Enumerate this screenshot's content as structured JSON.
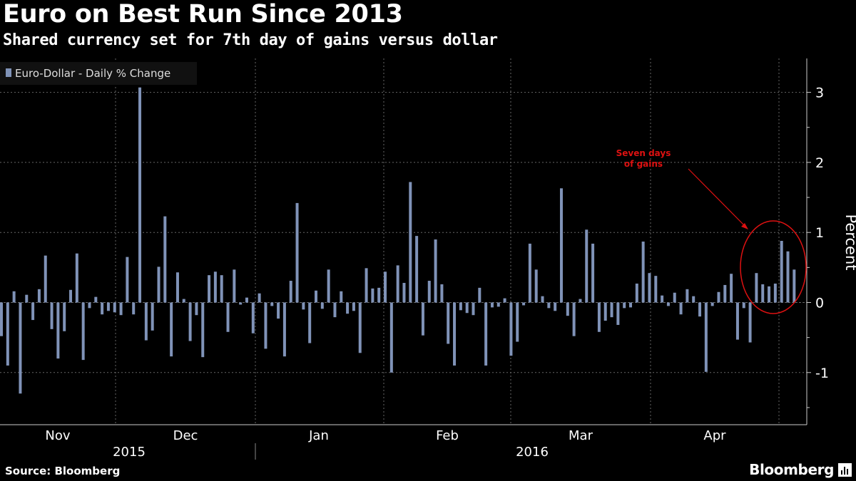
{
  "header": {
    "title": "Euro on Best Run Since 2013",
    "subtitle": "Shared currency set for 7th day of gains versus dollar"
  },
  "footer": {
    "source": "Source: Bloomberg",
    "brand": "Bloomberg"
  },
  "colors": {
    "background": "#000000",
    "bar": "#8093b8",
    "annotation": "#dd1111",
    "grid": "#666666",
    "text": "#ffffff"
  },
  "chart_data": {
    "type": "bar",
    "legend": {
      "position": "top-left",
      "items": [
        {
          "label": "Euro-Dollar - Daily % Change",
          "color": "#8093b8"
        }
      ]
    },
    "ylabel": "Percent",
    "yaxis_side": "right",
    "ylim": [
      -1.75,
      3.45
    ],
    "yticks": [
      -1,
      0,
      1,
      2,
      3
    ],
    "grid": true,
    "month_labels": [
      "Nov",
      "Dec",
      "Jan",
      "Feb",
      "Mar",
      "Apr"
    ],
    "year_labels": [
      "2015",
      "2016"
    ],
    "annotation": {
      "text_line1": "Seven days",
      "text_line2": "of gains"
    },
    "series": [
      {
        "name": "Euro-Dollar - Daily % Change",
        "values": [
          -0.48,
          -0.9,
          0.16,
          -1.3,
          0.11,
          -0.25,
          0.19,
          0.67,
          -0.38,
          -0.8,
          -0.41,
          0.18,
          0.7,
          -0.82,
          -0.08,
          0.08,
          -0.17,
          -0.12,
          -0.14,
          -0.18,
          0.65,
          -0.17,
          3.07,
          -0.54,
          -0.4,
          0.51,
          1.23,
          -0.77,
          0.43,
          0.05,
          -0.55,
          -0.18,
          -0.78,
          0.39,
          0.44,
          0.39,
          -0.42,
          0.47,
          -0.03,
          0.07,
          -0.44,
          0.13,
          -0.66,
          -0.05,
          -0.23,
          -0.77,
          0.31,
          1.42,
          -0.1,
          -0.58,
          0.17,
          -0.09,
          0.47,
          -0.21,
          0.16,
          -0.16,
          -0.12,
          -0.72,
          0.49,
          0.2,
          0.21,
          0.44,
          -1.0,
          0.53,
          0.28,
          1.72,
          0.95,
          -0.47,
          0.31,
          0.9,
          0.26,
          -0.59,
          -0.9,
          -0.11,
          -0.15,
          -0.18,
          0.21,
          -0.9,
          -0.07,
          -0.06,
          0.06,
          -0.76,
          -0.56,
          -0.04,
          0.84,
          0.47,
          0.09,
          -0.08,
          -0.12,
          1.63,
          -0.19,
          -0.48,
          0.05,
          1.04,
          0.84,
          -0.42,
          -0.26,
          -0.21,
          -0.32,
          -0.08,
          -0.07,
          0.27,
          0.87,
          0.42,
          0.38,
          0.1,
          -0.05,
          0.14,
          -0.17,
          0.19,
          0.09,
          -0.2,
          -0.99,
          -0.05,
          0.15,
          0.25,
          0.41,
          -0.53,
          -0.08,
          -0.57,
          0.42,
          0.26,
          0.23,
          0.27,
          0.88,
          0.73,
          0.47
        ]
      }
    ]
  }
}
